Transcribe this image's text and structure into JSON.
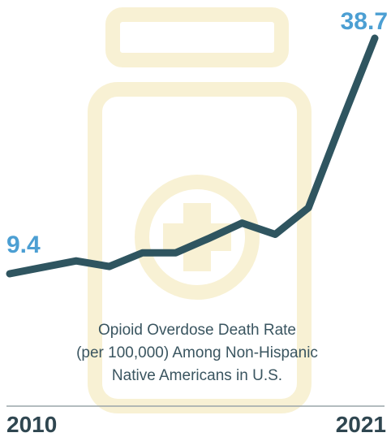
{
  "chart_data": {
    "type": "line",
    "title_lines": [
      "Opioid Overdose Death Rate",
      "(per 100,000) Among Non-Hispanic",
      "Native Americans in U.S."
    ],
    "categories": [
      "2010",
      null,
      null,
      null,
      null,
      null,
      null,
      null,
      null,
      null,
      null,
      "2021"
    ],
    "series": [
      {
        "color": "#2f5560",
        "values": [
          9.4,
          10.2,
          11.0,
          10.3,
          12.0,
          12.0,
          13.8,
          15.7,
          14.3,
          17.6,
          28.3,
          38.7
        ]
      }
    ]
  }
}
